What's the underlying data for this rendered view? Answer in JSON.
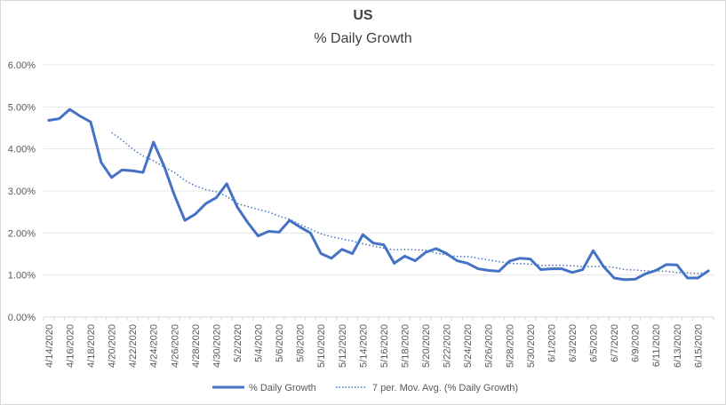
{
  "chart_data": {
    "type": "line",
    "title": "US",
    "subtitle": "% Daily Growth",
    "xlabel": "",
    "ylabel": "",
    "ylim": [
      0,
      6
    ],
    "y_ticks": [
      "0.00%",
      "1.00%",
      "2.00%",
      "3.00%",
      "4.00%",
      "5.00%",
      "6.00%"
    ],
    "grid": true,
    "legend_position": "bottom",
    "categories": [
      "4/14/2020",
      "4/15/2020",
      "4/16/2020",
      "4/17/2020",
      "4/18/2020",
      "4/19/2020",
      "4/20/2020",
      "4/21/2020",
      "4/22/2020",
      "4/23/2020",
      "4/24/2020",
      "4/25/2020",
      "4/26/2020",
      "4/27/2020",
      "4/28/2020",
      "4/29/2020",
      "4/30/2020",
      "5/1/2020",
      "5/2/2020",
      "5/3/2020",
      "5/4/2020",
      "5/5/2020",
      "5/6/2020",
      "5/7/2020",
      "5/8/2020",
      "5/9/2020",
      "5/10/2020",
      "5/11/2020",
      "5/12/2020",
      "5/13/2020",
      "5/14/2020",
      "5/15/2020",
      "5/16/2020",
      "5/17/2020",
      "5/18/2020",
      "5/19/2020",
      "5/20/2020",
      "5/21/2020",
      "5/22/2020",
      "5/23/2020",
      "5/24/2020",
      "5/25/2020",
      "5/26/2020",
      "5/27/2020",
      "5/28/2020",
      "5/29/2020",
      "5/30/2020",
      "5/31/2020",
      "6/1/2020",
      "6/2/2020",
      "6/3/2020",
      "6/4/2020",
      "6/5/2020",
      "6/6/2020",
      "6/7/2020",
      "6/8/2020",
      "6/9/2020",
      "6/10/2020",
      "6/11/2020",
      "6/12/2020",
      "6/13/2020",
      "6/14/2020",
      "6/15/2020",
      "6/16/2020"
    ],
    "tick_labels": [
      "4/14/2020",
      "4/16/2020",
      "4/18/2020",
      "4/20/2020",
      "4/22/2020",
      "4/24/2020",
      "4/26/2020",
      "4/28/2020",
      "4/30/2020",
      "5/2/2020",
      "5/4/2020",
      "5/6/2020",
      "5/8/2020",
      "5/10/2020",
      "5/12/2020",
      "5/14/2020",
      "5/16/2020",
      "5/18/2020",
      "5/20/2020",
      "5/22/2020",
      "5/24/2020",
      "5/26/2020",
      "5/28/2020",
      "5/30/2020",
      "6/1/2020",
      "6/3/2020",
      "6/5/2020",
      "6/7/2020",
      "6/9/2020",
      "6/11/2020",
      "6/13/2020",
      "6/15/2020"
    ],
    "series": [
      {
        "name": "% Daily Growth",
        "color": "#4472c4",
        "style": "solid",
        "values": [
          4.68,
          4.72,
          4.94,
          4.78,
          4.64,
          3.68,
          3.32,
          3.5,
          3.48,
          3.44,
          4.16,
          3.6,
          2.9,
          2.3,
          2.45,
          2.7,
          2.84,
          3.17,
          2.62,
          2.25,
          1.93,
          2.04,
          2.02,
          2.3,
          2.14,
          2.0,
          1.51,
          1.4,
          1.61,
          1.51,
          1.96,
          1.76,
          1.72,
          1.28,
          1.45,
          1.34,
          1.54,
          1.63,
          1.51,
          1.34,
          1.28,
          1.15,
          1.11,
          1.09,
          1.33,
          1.4,
          1.38,
          1.13,
          1.15,
          1.15,
          1.06,
          1.13,
          1.58,
          1.2,
          0.93,
          0.89,
          0.9,
          1.03,
          1.11,
          1.25,
          1.24,
          0.93,
          0.93,
          1.1
        ]
      },
      {
        "name": "7 per. Mov. Avg. (% Daily Growth)",
        "color": "#4472c4",
        "style": "dotted",
        "values": [
          null,
          null,
          null,
          null,
          null,
          null,
          4.39,
          4.21,
          4.0,
          3.83,
          3.72,
          3.57,
          3.44,
          3.25,
          3.12,
          3.03,
          2.98,
          2.87,
          2.7,
          2.63,
          2.56,
          2.5,
          2.4,
          2.33,
          2.2,
          2.09,
          1.98,
          1.91,
          1.86,
          1.81,
          1.74,
          1.69,
          1.64,
          1.6,
          1.61,
          1.6,
          1.59,
          1.52,
          1.48,
          1.44,
          1.44,
          1.4,
          1.36,
          1.32,
          1.28,
          1.27,
          1.26,
          1.23,
          1.23,
          1.23,
          1.22,
          1.2,
          1.2,
          1.21,
          1.18,
          1.13,
          1.12,
          1.1,
          1.09,
          1.09,
          1.06,
          1.05,
          1.04,
          1.06
        ]
      }
    ]
  }
}
